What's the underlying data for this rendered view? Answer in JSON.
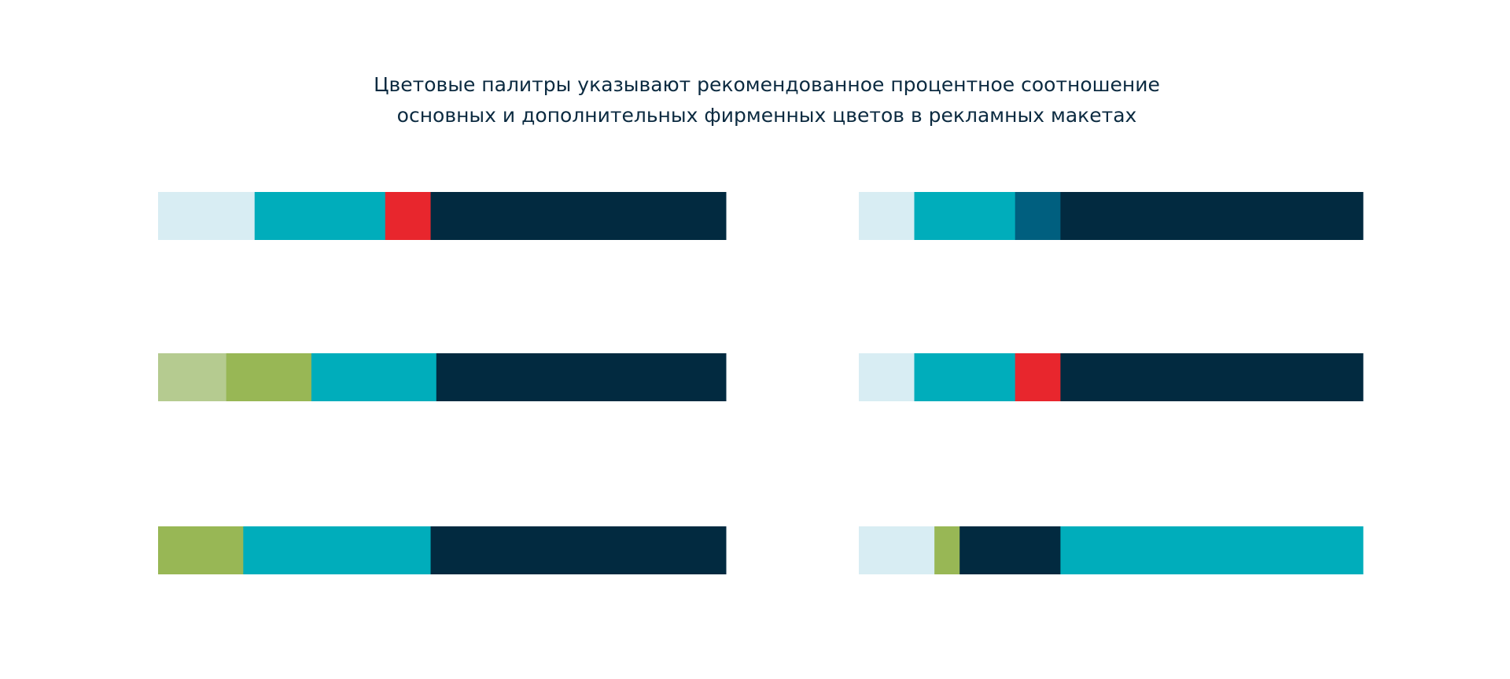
{
  "title": [
    "Цветовые палитры указывают рекомендованное процентное соотношение",
    "основных и дополнительных фирменных цветов в рекламных макетах"
  ],
  "palettes": [
    {
      "swatches": [
        {
          "color": "#d8edf3",
          "share": 17
        },
        {
          "color": "#00adbb",
          "share": 23
        },
        {
          "color": "#e8262d",
          "share": 8
        },
        {
          "color": "#022a40",
          "share": 52
        }
      ]
    },
    {
      "swatches": [
        {
          "color": "#d8edf3",
          "share": 11
        },
        {
          "color": "#00adbb",
          "share": 20
        },
        {
          "color": "#005f7f",
          "share": 9
        },
        {
          "color": "#022a40",
          "share": 60
        }
      ]
    },
    {
      "swatches": [
        {
          "color": "#b5cb90",
          "share": 12
        },
        {
          "color": "#98b755",
          "share": 15
        },
        {
          "color": "#00adbb",
          "share": 22
        },
        {
          "color": "#022a40",
          "share": 51
        }
      ]
    },
    {
      "swatches": [
        {
          "color": "#d8edf3",
          "share": 11
        },
        {
          "color": "#00adbb",
          "share": 20
        },
        {
          "color": "#e8262d",
          "share": 9
        },
        {
          "color": "#022a40",
          "share": 60
        }
      ]
    },
    {
      "swatches": [
        {
          "color": "#98b755",
          "share": 15
        },
        {
          "color": "#00adbb",
          "share": 33
        },
        {
          "color": "#022a40",
          "share": 52
        }
      ]
    },
    {
      "swatches": [
        {
          "color": "#d8edf3",
          "share": 15
        },
        {
          "color": "#98b755",
          "share": 5
        },
        {
          "color": "#022a40",
          "share": 20
        },
        {
          "color": "#00adbb",
          "share": 60
        }
      ]
    }
  ]
}
